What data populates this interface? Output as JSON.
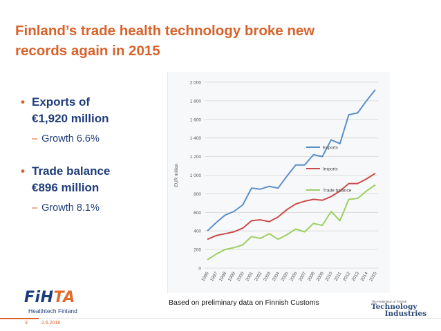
{
  "slide": {
    "title_line1": "Finland’s trade health technology broke new",
    "title_line2": "records again in 2015",
    "bullet1_line1": "Exports of",
    "bullet1_line2": "€1,920 million",
    "bullet1_sub": "Growth 6.6%",
    "bullet2_line1": "Trade balance",
    "bullet2_line2": "€896 million",
    "bullet2_sub": "Growth 8.1%",
    "bullet_glyph": "•",
    "dash_glyph": "–",
    "caption": "Based on preliminary data on Finnish Customs",
    "page_number": "3",
    "date": "2.6.2016",
    "logo_fi": "FiH",
    "logo_hta": "TA",
    "logo_sub": "Healthtech Finland",
    "ti_small": "The Federation of Finnish",
    "ti_big1": "Technology",
    "ti_big2": "Industries",
    "accent_color": "#d9622b",
    "text_color": "#1f3d7a"
  },
  "chart_data": {
    "type": "line",
    "x": [
      "1996",
      "1997",
      "1998",
      "1999",
      "2000",
      "2001",
      "2002",
      "2003",
      "2004",
      "2005",
      "2006",
      "2007",
      "2008",
      "2009",
      "2010",
      "2011",
      "2012",
      "2013",
      "2014",
      "2015"
    ],
    "ylabel": "EUR million",
    "ylim": [
      0,
      2000
    ],
    "yticks": [
      0,
      200,
      400,
      600,
      800,
      1000,
      1200,
      1400,
      1600,
      1800,
      2000
    ],
    "ytick_labels": [
      "0",
      "200",
      "400",
      "600",
      "800",
      "1 000",
      "1 200",
      "1 400",
      "1 600",
      "1 800",
      "2 000"
    ],
    "grid": true,
    "legend_position": "right",
    "series": [
      {
        "name": "Exports",
        "color": "#5b8fc9",
        "values": [
          400,
          490,
          570,
          610,
          680,
          860,
          850,
          880,
          860,
          990,
          1110,
          1110,
          1220,
          1200,
          1380,
          1340,
          1650,
          1670,
          1800,
          1920
        ]
      },
      {
        "name": "Imports",
        "color": "#cc4a4a",
        "values": [
          310,
          350,
          370,
          390,
          430,
          510,
          520,
          500,
          550,
          630,
          690,
          720,
          740,
          730,
          770,
          830,
          910,
          910,
          960,
          1020
        ]
      },
      {
        "name": "Trade balance",
        "color": "#9dcf62",
        "values": [
          90,
          150,
          200,
          220,
          250,
          340,
          320,
          370,
          310,
          360,
          420,
          390,
          480,
          460,
          610,
          510,
          740,
          750,
          830,
          896
        ]
      }
    ]
  }
}
